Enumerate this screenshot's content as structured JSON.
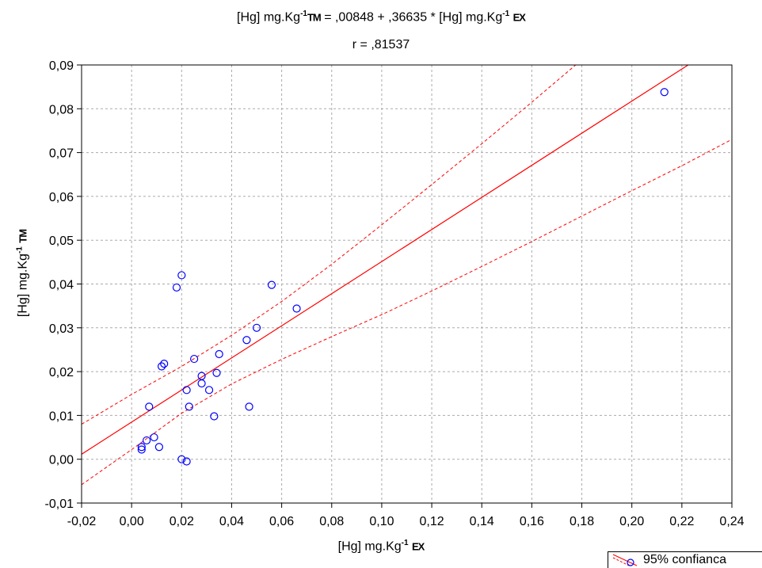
{
  "title": {
    "line1": {
      "prefix": "[Hg] mg.Kg",
      "sup1": "-1",
      "tag1": "TM",
      "middle": " = ,00848 + ,36635 * [Hg] mg.Kg",
      "sup2": "-1",
      "tag2": "EX"
    },
    "line2": "r = ,81537"
  },
  "xlabel": {
    "prefix": "[Hg] mg.Kg",
    "sup": "-1",
    "tag": "EX"
  },
  "ylabel": {
    "prefix": "[Hg] mg.Kg",
    "sup": "-1",
    "tag": "TM"
  },
  "legend": {
    "label": "95% confianca"
  },
  "colors": {
    "points": "#0000ff",
    "fit": "#ff0000",
    "grid": "#aaaaaa"
  },
  "chart_data": {
    "type": "scatter",
    "xlim": [
      -0.02,
      0.24
    ],
    "ylim": [
      -0.01,
      0.09
    ],
    "grid": true,
    "legend_position": "bottom-right",
    "x_ticks": [
      -0.02,
      0.0,
      0.02,
      0.04,
      0.06,
      0.08,
      0.1,
      0.12,
      0.14,
      0.16,
      0.18,
      0.2,
      0.22,
      0.24
    ],
    "x_tick_labels": [
      "-0,02",
      "0,00",
      "0,02",
      "0,04",
      "0,06",
      "0,08",
      "0,10",
      "0,12",
      "0,14",
      "0,16",
      "0,18",
      "0,20",
      "0,22",
      "0,24"
    ],
    "y_ticks": [
      -0.01,
      0.0,
      0.01,
      0.02,
      0.03,
      0.04,
      0.05,
      0.06,
      0.07,
      0.08,
      0.09
    ],
    "y_tick_labels": [
      "-0,01",
      "0,00",
      "0,01",
      "0,02",
      "0,03",
      "0,04",
      "0,05",
      "0,06",
      "0,07",
      "0,08",
      "0,09"
    ],
    "regression": {
      "intercept": 0.00848,
      "slope": 0.36635,
      "r": 0.81537
    },
    "confidence_band": {
      "x": [
        -0.02,
        0.0,
        0.02,
        0.04,
        0.06,
        0.08,
        0.1,
        0.12,
        0.14,
        0.16,
        0.18,
        0.2,
        0.22,
        0.24
      ],
      "upper": [
        0.008,
        0.0148,
        0.0212,
        0.0283,
        0.036,
        0.0445,
        0.0535,
        0.0627,
        0.072,
        0.0815,
        0.0912,
        0.1008,
        0.1105,
        0.1202
      ],
      "lower": [
        -0.0058,
        0.0022,
        0.0105,
        0.0172,
        0.0228,
        0.028,
        0.033,
        0.0384,
        0.044,
        0.0497,
        0.0555,
        0.0613,
        0.067,
        0.073
      ]
    },
    "points": [
      {
        "x": 0.004,
        "y": 0.0022
      },
      {
        "x": 0.004,
        "y": 0.0028
      },
      {
        "x": 0.006,
        "y": 0.0043
      },
      {
        "x": 0.007,
        "y": 0.012
      },
      {
        "x": 0.009,
        "y": 0.005
      },
      {
        "x": 0.011,
        "y": 0.0028
      },
      {
        "x": 0.012,
        "y": 0.0212
      },
      {
        "x": 0.013,
        "y": 0.0218
      },
      {
        "x": 0.018,
        "y": 0.0392
      },
      {
        "x": 0.02,
        "y": 0.042
      },
      {
        "x": 0.02,
        "y": 0.0
      },
      {
        "x": 0.022,
        "y": -0.0005
      },
      {
        "x": 0.022,
        "y": 0.0158
      },
      {
        "x": 0.023,
        "y": 0.012
      },
      {
        "x": 0.025,
        "y": 0.0229
      },
      {
        "x": 0.028,
        "y": 0.0173
      },
      {
        "x": 0.028,
        "y": 0.019
      },
      {
        "x": 0.031,
        "y": 0.0158
      },
      {
        "x": 0.033,
        "y": 0.0098
      },
      {
        "x": 0.034,
        "y": 0.0197
      },
      {
        "x": 0.035,
        "y": 0.024
      },
      {
        "x": 0.046,
        "y": 0.0272
      },
      {
        "x": 0.047,
        "y": 0.012
      },
      {
        "x": 0.05,
        "y": 0.03
      },
      {
        "x": 0.056,
        "y": 0.0398
      },
      {
        "x": 0.066,
        "y": 0.0344
      },
      {
        "x": 0.213,
        "y": 0.0838
      }
    ]
  }
}
